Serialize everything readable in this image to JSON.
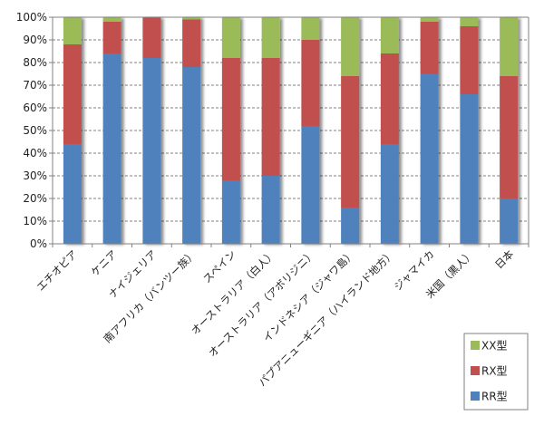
{
  "chart_data": {
    "type": "bar",
    "stacked": true,
    "percent_stacked": true,
    "title": "",
    "xlabel": "",
    "ylabel": "",
    "ylim": [
      0,
      100
    ],
    "yticks": [
      "0%",
      "10%",
      "20%",
      "30%",
      "40%",
      "50%",
      "60%",
      "70%",
      "80%",
      "90%",
      "100%"
    ],
    "grid": true,
    "legend_position": "bottom-right",
    "categories": [
      "エチオピア",
      "ケニア",
      "ナイジェリア",
      "南アフリカ（バンツー族）",
      "スペイン",
      "オーストラリア（白人）",
      "オーストラリア（アボリジニ）",
      "インドネシア（ジャワ島）",
      "パプアニューギニア（ハイランド地方）",
      "ジャマイカ",
      "米国（黒人）",
      "日本"
    ],
    "series": [
      {
        "name": "RR型",
        "color": "#4f81bd",
        "values": [
          44,
          84,
          82,
          78,
          28,
          30,
          52,
          16,
          44,
          75,
          66,
          20
        ]
      },
      {
        "name": "RX型",
        "color": "#c0504d",
        "values": [
          44,
          14,
          18,
          21,
          54,
          52,
          38,
          58,
          40,
          23,
          30,
          54
        ]
      },
      {
        "name": "XX型",
        "color": "#9bbb59",
        "values": [
          12,
          2,
          0,
          1,
          18,
          18,
          10,
          26,
          16,
          2,
          4,
          26
        ]
      }
    ],
    "legend_order": [
      "XX型",
      "RX型",
      "RR型"
    ]
  }
}
